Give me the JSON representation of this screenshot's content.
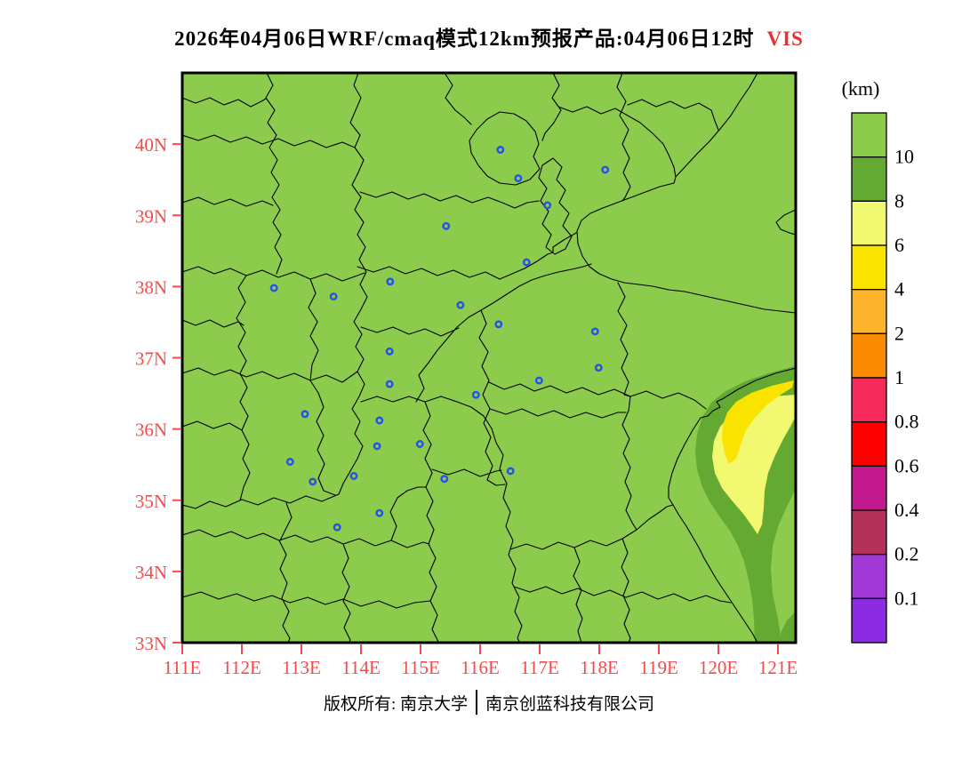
{
  "title": {
    "main": "2026年04月06日WRF/cmaq模式12km预报产品:04月06日12时",
    "variable": "VIS",
    "variable_color": "#e63232"
  },
  "footer": {
    "left": "版权所有: 南京大学",
    "right": "南京创蓝科技有限公司"
  },
  "colorbar": {
    "unit": "(km)",
    "cells": [
      {
        "color": "#8dcb4d",
        "label": "10"
      },
      {
        "color": "#64a932",
        "label": "8"
      },
      {
        "color": "#f2f870",
        "label": "6"
      },
      {
        "color": "#fbe300",
        "label": "4"
      },
      {
        "color": "#fdb32c",
        "label": "2"
      },
      {
        "color": "#fb8c00",
        "label": "1"
      },
      {
        "color": "#f72b5b",
        "label": "0.8"
      },
      {
        "color": "#ff0000",
        "label": "0.6"
      },
      {
        "color": "#c2188e",
        "label": "0.4"
      },
      {
        "color": "#b23259",
        "label": "0.2"
      },
      {
        "color": "#a238d6",
        "label": "0.1"
      },
      {
        "color": "#8b2be2",
        "label": ""
      }
    ]
  },
  "map": {
    "tick_color": "#f64a4a",
    "boundary_color": "#000000",
    "marker_color": "#2353e8",
    "lon_ticks": [
      {
        "label": "111E",
        "value": 111
      },
      {
        "label": "112E",
        "value": 112
      },
      {
        "label": "113E",
        "value": 113
      },
      {
        "label": "114E",
        "value": 114
      },
      {
        "label": "115E",
        "value": 115
      },
      {
        "label": "116E",
        "value": 116
      },
      {
        "label": "117E",
        "value": 117
      },
      {
        "label": "118E",
        "value": 118
      },
      {
        "label": "119E",
        "value": 119
      },
      {
        "label": "120E",
        "value": 120
      },
      {
        "label": "121E",
        "value": 121
      }
    ],
    "lat_ticks": [
      {
        "label": "33N",
        "value": 33
      },
      {
        "label": "34N",
        "value": 34
      },
      {
        "label": "35N",
        "value": 35
      },
      {
        "label": "36N",
        "value": 36
      },
      {
        "label": "37N",
        "value": 37
      },
      {
        "label": "38N",
        "value": 38
      },
      {
        "label": "39N",
        "value": 39
      },
      {
        "label": "40N",
        "value": 40
      }
    ],
    "city_markers": [
      {
        "lon": 116.34,
        "lat": 39.92
      },
      {
        "lon": 118.1,
        "lat": 39.64
      },
      {
        "lon": 116.64,
        "lat": 39.52
      },
      {
        "lon": 117.13,
        "lat": 39.14
      },
      {
        "lon": 115.43,
        "lat": 38.85
      },
      {
        "lon": 116.78,
        "lat": 38.34
      },
      {
        "lon": 112.54,
        "lat": 37.98
      },
      {
        "lon": 114.49,
        "lat": 38.07
      },
      {
        "lon": 113.54,
        "lat": 37.86
      },
      {
        "lon": 115.67,
        "lat": 37.74
      },
      {
        "lon": 116.31,
        "lat": 37.47
      },
      {
        "lon": 117.93,
        "lat": 37.37
      },
      {
        "lon": 114.48,
        "lat": 37.09
      },
      {
        "lon": 117.99,
        "lat": 36.86
      },
      {
        "lon": 116.99,
        "lat": 36.68
      },
      {
        "lon": 114.48,
        "lat": 36.63
      },
      {
        "lon": 115.93,
        "lat": 36.48
      },
      {
        "lon": 113.06,
        "lat": 36.21
      },
      {
        "lon": 114.31,
        "lat": 36.12
      },
      {
        "lon": 114.27,
        "lat": 35.76
      },
      {
        "lon": 114.99,
        "lat": 35.79
      },
      {
        "lon": 112.81,
        "lat": 35.54
      },
      {
        "lon": 113.19,
        "lat": 35.26
      },
      {
        "lon": 113.88,
        "lat": 35.34
      },
      {
        "lon": 115.4,
        "lat": 35.3
      },
      {
        "lon": 116.51,
        "lat": 35.41
      },
      {
        "lon": 114.31,
        "lat": 34.82
      },
      {
        "lon": 113.6,
        "lat": 34.62
      }
    ]
  }
}
